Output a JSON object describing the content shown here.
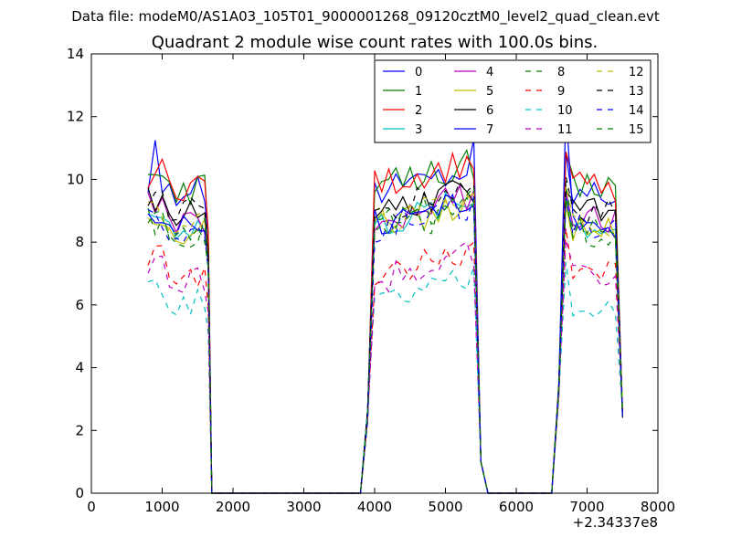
{
  "figure": {
    "suptitle": "Data file: modeM0/AS1A03_105T01_9000001268_09120cztM0_level2_quad_clean.evt",
    "title": "Quadrant 2 module wise count rates with 100.0s bins.",
    "x_offset_label": "+2.34337e8"
  },
  "chart_data": {
    "type": "line",
    "title": "Quadrant 2 module wise count rates with 100.0s bins.",
    "xlabel": "",
    "ylabel": "",
    "x_offset": 234337000,
    "xlim": [
      0,
      8000
    ],
    "ylim": [
      0,
      14
    ],
    "xticks": [
      0,
      1000,
      2000,
      3000,
      4000,
      5000,
      6000,
      7000,
      8000
    ],
    "yticks": [
      0,
      2,
      4,
      6,
      8,
      10,
      12,
      14
    ],
    "xtick_labels": [
      "0",
      "1000",
      "2000",
      "3000",
      "4000",
      "5000",
      "6000",
      "7000",
      "8000"
    ],
    "ytick_labels": [
      "0",
      "2",
      "4",
      "6",
      "8",
      "10",
      "12",
      "14"
    ],
    "grid": false,
    "legend_position": "top-right",
    "legend_columns": 4,
    "series": [
      {
        "name": "0",
        "color": "#0000ff",
        "style": "solid"
      },
      {
        "name": "1",
        "color": "#008000",
        "style": "solid"
      },
      {
        "name": "2",
        "color": "#ff0000",
        "style": "solid"
      },
      {
        "name": "3",
        "color": "#00bfbf",
        "style": "solid"
      },
      {
        "name": "4",
        "color": "#bf00bf",
        "style": "solid"
      },
      {
        "name": "5",
        "color": "#bfbf00",
        "style": "solid"
      },
      {
        "name": "6",
        "color": "#000000",
        "style": "solid"
      },
      {
        "name": "7",
        "color": "#0000ff",
        "style": "solid"
      },
      {
        "name": "8",
        "color": "#008000",
        "style": "dashed"
      },
      {
        "name": "9",
        "color": "#ff0000",
        "style": "dashed"
      },
      {
        "name": "10",
        "color": "#00bfbf",
        "style": "dashed"
      },
      {
        "name": "11",
        "color": "#bf00bf",
        "style": "dashed"
      },
      {
        "name": "12",
        "color": "#bfbf00",
        "style": "dashed"
      },
      {
        "name": "13",
        "color": "#000000",
        "style": "dashed"
      },
      {
        "name": "14",
        "color": "#0000ff",
        "style": "dashed"
      },
      {
        "name": "15",
        "color": "#008000",
        "style": "dashed"
      }
    ],
    "segments": [
      {
        "x_start": 800,
        "x_end": 1700,
        "step": 100
      },
      {
        "x_start": 1700,
        "x_end": 3900,
        "step": 100
      },
      {
        "x_start": 3900,
        "x_end": 5600,
        "step": 100
      },
      {
        "x_start": 5600,
        "x_end": 6500,
        "step": 100
      },
      {
        "x_start": 6500,
        "x_end": 7500,
        "step": 100
      }
    ],
    "plateau_levels": {
      "0": 9.6,
      "1": 9.7,
      "2": 9.8,
      "3": 8.5,
      "4": 8.7,
      "5": 8.4,
      "6": 8.9,
      "7": 8.6,
      "8": 8.3,
      "9": 7.0,
      "10": 6.0,
      "11": 6.8,
      "12": 8.6,
      "13": 9.0,
      "14": 8.4,
      "15": 8.5
    },
    "peaks": {
      "7_at_6700": 12.2,
      "0_at_900": 11.25,
      "0_at_5400": 11.3
    }
  }
}
